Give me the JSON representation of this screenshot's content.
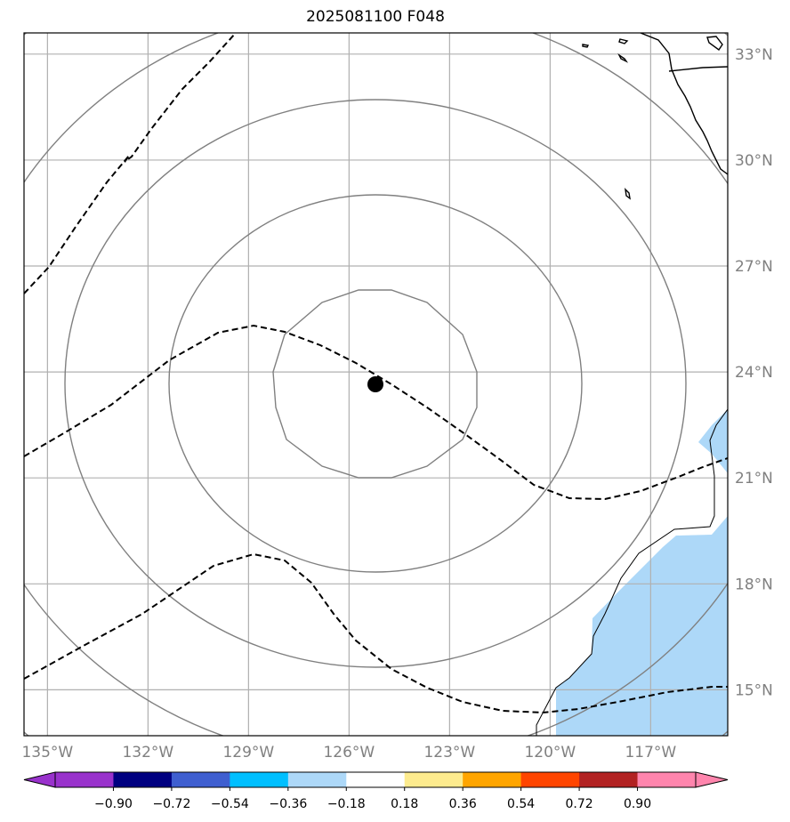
{
  "title": "2025081100 F048",
  "map": {
    "lon_range": [
      -135.7,
      -114.7
    ],
    "lat_range": [
      13.7,
      33.6
    ],
    "lon_ticks": [
      {
        "value": -135,
        "label": "135°W"
      },
      {
        "value": -132,
        "label": "132°W"
      },
      {
        "value": -129,
        "label": "129°W"
      },
      {
        "value": -126,
        "label": "126°W"
      },
      {
        "value": -123,
        "label": "123°W"
      },
      {
        "value": -120,
        "label": "120°W"
      },
      {
        "value": -117,
        "label": "117°W"
      }
    ],
    "lat_ticks": [
      {
        "value": 15,
        "label": "15°N"
      },
      {
        "value": 18,
        "label": "18°N"
      },
      {
        "value": 21,
        "label": "21°N"
      },
      {
        "value": 24,
        "label": "24°N"
      },
      {
        "value": 27,
        "label": "27°N"
      },
      {
        "value": 30,
        "label": "30°N"
      },
      {
        "value": 33,
        "label": "33°N"
      }
    ],
    "center": {
      "lon": -125.5,
      "lat": 23.6
    },
    "grid_lines": true,
    "colors": {
      "grid": "#b0b0b0",
      "range_rings": "#808080",
      "dashed_contours": "#000000",
      "coastline": "#000000",
      "shaded_region": "#add8f8",
      "storm_marker": "#000000"
    }
  },
  "colorbar": {
    "levels": [
      "−0.90",
      "−0.72",
      "−0.54",
      "−0.36",
      "−0.18",
      "0.18",
      "0.36",
      "0.54",
      "0.72",
      "0.90"
    ],
    "colors": [
      "#9932cc",
      "#000080",
      "#3f5fd0",
      "#00bfff",
      "#add8f8",
      "#ffffff",
      "#fdeb8e",
      "#ffa500",
      "#ff4500",
      "#b22222",
      "#ff85ad",
      "#ff85ad"
    ]
  }
}
